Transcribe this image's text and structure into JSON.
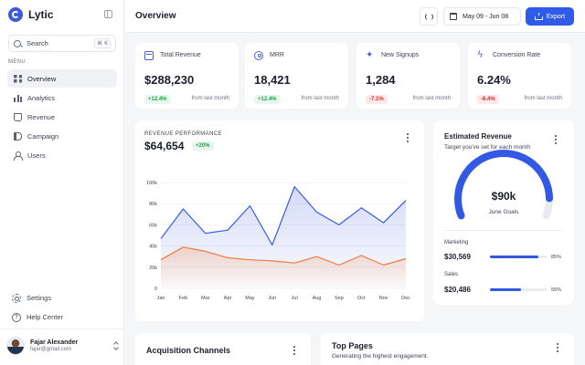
{
  "app": {
    "name": "Lytic"
  },
  "sidebar": {
    "search_placeholder": "Search",
    "search_shortcut": "⌘ K",
    "menu_title": "MENU",
    "items": [
      {
        "label": "Overview",
        "icon": "grid-icon",
        "active": true
      },
      {
        "label": "Analytics",
        "icon": "bar-chart-icon",
        "active": false
      },
      {
        "label": "Revenue",
        "icon": "money-bag-icon",
        "active": false
      },
      {
        "label": "Campaign",
        "icon": "megaphone-icon",
        "active": false
      },
      {
        "label": "Users",
        "icon": "users-icon",
        "active": false
      }
    ],
    "bottom_items": [
      {
        "label": "Settings",
        "icon": "gear-icon"
      },
      {
        "label": "Help Center",
        "icon": "help-icon"
      }
    ],
    "profile": {
      "name": "Fajar Alexander",
      "email": "fajar@gmail.com"
    }
  },
  "header": {
    "title": "Overview",
    "date_range": "May 09 - Jun 08",
    "export_label": "Export"
  },
  "stats": [
    {
      "label": "Total Revenue",
      "value": "$288,230",
      "change": "+12.4%",
      "trend": "up",
      "note": "from last month",
      "icon": "wallet-icon"
    },
    {
      "label": "MRR",
      "value": "18,421",
      "change": "+12.4%",
      "trend": "up",
      "note": "from last month",
      "icon": "user-circle-icon"
    },
    {
      "label": "New Signups",
      "value": "1,284",
      "change": "-7.1%",
      "trend": "down",
      "note": "from last month",
      "icon": "sparkle-icon"
    },
    {
      "label": "Conversion Rate",
      "value": "6.24%",
      "change": "-6.4%",
      "trend": "down",
      "note": "from last month",
      "icon": "bolt-icon"
    }
  ],
  "revenue_performance": {
    "title": "REVENUE PERFORMANCE",
    "value": "$64,654",
    "change": "+20%"
  },
  "chart_data": {
    "type": "area",
    "categories": [
      "Jan",
      "Feb",
      "Mar",
      "Apr",
      "May",
      "Jun",
      "Jul",
      "Aug",
      "Sep",
      "Oct",
      "Nov",
      "Dec"
    ],
    "series": [
      {
        "values": [
          47000,
          75000,
          52000,
          55000,
          78000,
          41000,
          96000,
          72000,
          60000,
          76000,
          62000,
          83000
        ],
        "color": "#3b5bdb"
      },
      {
        "values": [
          27000,
          39000,
          35000,
          29000,
          27000,
          26000,
          24000,
          30000,
          22000,
          31000,
          22000,
          28000
        ],
        "color": "#f07a3b"
      }
    ],
    "y_ticks": [
      "0",
      "20k",
      "40k",
      "60k",
      "80k",
      "100k"
    ],
    "ylim": [
      0,
      100000
    ],
    "grid": true
  },
  "estimated_revenue": {
    "title": "Estimated Revenue",
    "subtitle": "Target you've set for each month",
    "gauge_value": "$90k",
    "gauge_label": "June Goals",
    "gauge_fraction": 0.9,
    "metrics": [
      {
        "label": "Marketing",
        "value": "$30,569",
        "percent": "85%",
        "fraction": 0.85
      },
      {
        "label": "Sales",
        "value": "$20,486",
        "percent": "55%",
        "fraction": 0.55
      }
    ]
  },
  "acquisition": {
    "title": "Acquisition Channels"
  },
  "top_pages": {
    "title": "Top Pages",
    "subtitle": "Generating the highest engagement."
  },
  "colors": {
    "accent": "#2f5be8",
    "line_primary": "#3b5bdb",
    "line_secondary": "#f07a3b",
    "up": "#16a34a",
    "down": "#dc2626"
  }
}
